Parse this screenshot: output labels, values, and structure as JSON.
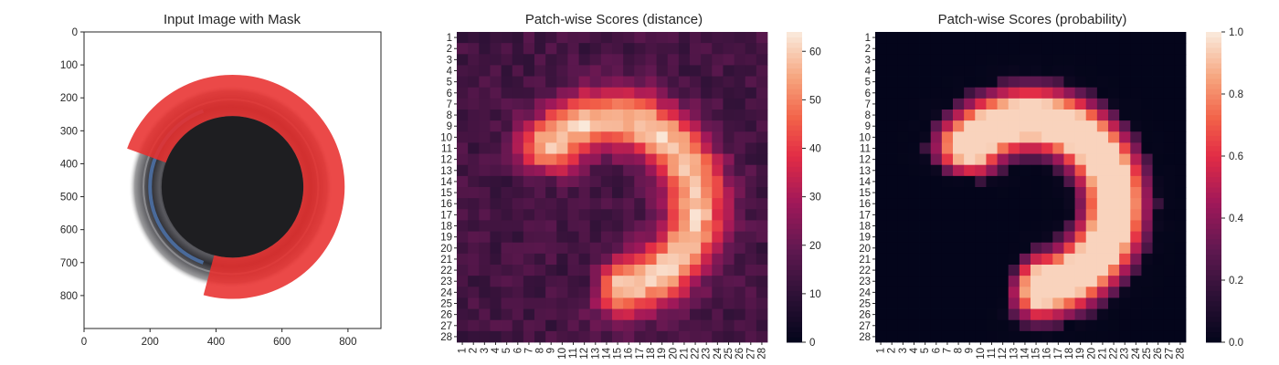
{
  "chart_data": [
    {
      "type": "image",
      "title": "Input Image with Mask",
      "xlim": [
        0,
        900
      ],
      "ylim": [
        900,
        0
      ],
      "xticks": [
        0,
        200,
        400,
        600,
        800
      ],
      "yticks": [
        0,
        100,
        200,
        300,
        400,
        500,
        600,
        700,
        800
      ],
      "image_content": "Top-down photo of a round dark bottle opening; a red semi-transparent mask covers a C-shaped region on the upper and right side of the ring.",
      "mask_color": "#e8302f",
      "mask_arc": {
        "center": [
          450,
          470
        ],
        "inner_radius": 215,
        "outer_radius": 340,
        "start_angle_deg": 200,
        "end_angle_deg": 465
      }
    },
    {
      "type": "heatmap",
      "title": "Patch-wise Scores (distance)",
      "rows": [
        "1",
        "2",
        "3",
        "4",
        "5",
        "6",
        "7",
        "8",
        "9",
        "10",
        "11",
        "12",
        "13",
        "14",
        "15",
        "16",
        "17",
        "18",
        "19",
        "20",
        "21",
        "22",
        "23",
        "24",
        "25",
        "26",
        "27",
        "28"
      ],
      "cols": [
        "1",
        "2",
        "3",
        "4",
        "5",
        "6",
        "7",
        "8",
        "9",
        "10",
        "11",
        "12",
        "13",
        "14",
        "15",
        "16",
        "17",
        "18",
        "19",
        "20",
        "21",
        "22",
        "23",
        "24",
        "25",
        "26",
        "27",
        "28"
      ],
      "colormap": "rocket",
      "colorbar_range": [
        0,
        64
      ],
      "colorbar_ticks": [
        0,
        10,
        20,
        30,
        40,
        50,
        60
      ],
      "background_value": 14,
      "arc_peak_value": 60,
      "arc_shape": {
        "center": [
          13.5,
          15.0
        ],
        "radius": 7.6,
        "width_sigma": 1.9,
        "start_angle_deg": 200,
        "end_angle_deg": 465
      }
    },
    {
      "type": "heatmap",
      "title": "Patch-wise Scores (probability)",
      "rows": [
        "1",
        "2",
        "3",
        "4",
        "5",
        "6",
        "7",
        "8",
        "9",
        "10",
        "11",
        "12",
        "13",
        "14",
        "15",
        "16",
        "17",
        "18",
        "19",
        "20",
        "21",
        "22",
        "23",
        "24",
        "25",
        "26",
        "27",
        "28"
      ],
      "cols": [
        "1",
        "2",
        "3",
        "4",
        "5",
        "6",
        "7",
        "8",
        "9",
        "10",
        "11",
        "12",
        "13",
        "14",
        "15",
        "16",
        "17",
        "18",
        "19",
        "20",
        "21",
        "22",
        "23",
        "24",
        "25",
        "26",
        "27",
        "28"
      ],
      "colormap": "rocket",
      "colorbar_range": [
        0,
        1
      ],
      "colorbar_ticks": [
        "0.0",
        "0.2",
        "0.4",
        "0.6",
        "0.8",
        "1.0"
      ],
      "background_value": 0.0,
      "arc_peak_value": 0.95,
      "arc_shape": {
        "center": [
          13.5,
          15.0
        ],
        "radius": 7.6,
        "width_sigma": 1.9,
        "start_angle_deg": 200,
        "end_angle_deg": 465
      }
    }
  ]
}
